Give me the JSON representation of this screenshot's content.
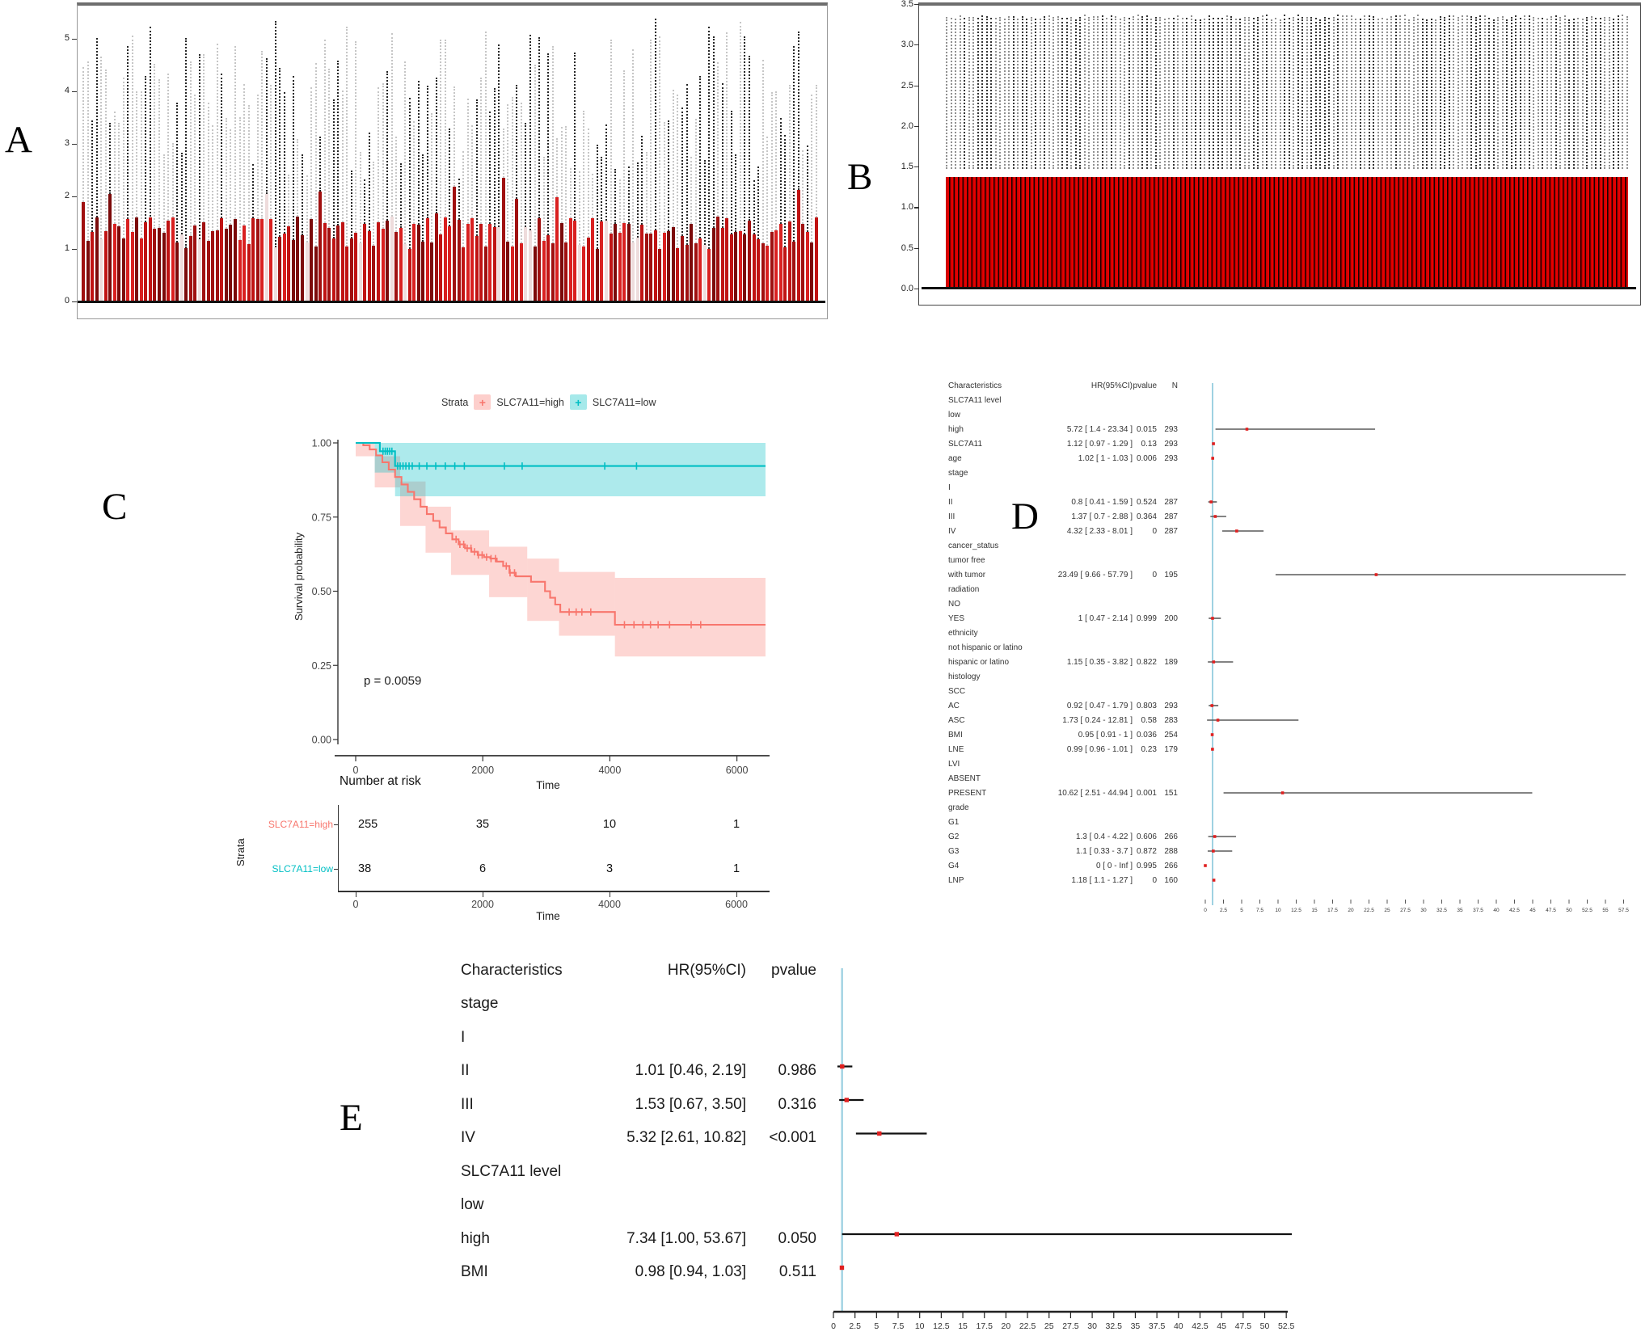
{
  "figure": {
    "panel_labels": {
      "a": "A",
      "b": "B",
      "c": "C",
      "d": "D",
      "e": "E"
    }
  },
  "colors": {
    "bar_red_dark": "#7c0a0a",
    "km_high": "#F8766D",
    "km_high_band": "rgba(248,118,109,0.30)",
    "km_low": "#00BFC4",
    "km_low_band": "rgba(0,191,196,0.32)",
    "forest_point": "#e02020",
    "forest_ci_line_d": "#5a5a5a",
    "forest_ci_line_e": "#111111",
    "reference_line_blue": "#9fd2e2"
  },
  "chart_data": [
    {
      "id": "A",
      "type": "bar",
      "title": "",
      "ylim": [
        0,
        5
      ],
      "yticks": [
        0,
        1,
        2,
        3,
        4,
        5
      ],
      "n_samples": 165,
      "red_bar_value_range": [
        1.0,
        2.2
      ],
      "dotted_top_value_range": [
        2.3,
        5.4
      ],
      "seed": 7,
      "bar_palette": [
        "#7c0a0a",
        "#a01010",
        "#c01313",
        "#d92020"
      ],
      "light_bar_color": "#eedcdc",
      "dot_colors": [
        "#262626",
        "#c6c6c6"
      ],
      "note": "Per-sample solid red bars with black/grey dotted whisker columns; individual bar heights are visual noise regenerated deterministically from seed"
    },
    {
      "id": "B",
      "type": "bar",
      "title": "",
      "ylim": [
        0,
        3.5
      ],
      "yticks": [
        3.5,
        3.0,
        2.5,
        2.0,
        1.5,
        1.0,
        0.5,
        0.0
      ],
      "n_samples": 154,
      "uniform_red_bar_value": 1.37,
      "dotted_band_value_range": [
        1.47,
        3.37
      ],
      "seed": 11,
      "red_color": "#e60000",
      "separator_color": "#1a0000",
      "dot_colors": [
        "#333333",
        "#909090"
      ],
      "note": "Uniform red bars at ~1.37 for every sample with dotted columns spanning ~1.47-3.37"
    },
    {
      "id": "C",
      "type": "line",
      "title": "",
      "xlabel": "Time",
      "ylabel": "Survival probability",
      "xticks": [
        0,
        2000,
        4000,
        6000
      ],
      "yticks": [
        0.0,
        0.25,
        0.5,
        0.75,
        1.0
      ],
      "xlim": [
        0,
        6450
      ],
      "ylim": [
        0,
        1
      ],
      "p_value_text": "p = 0.0059",
      "legend_title": "Strata",
      "series": [
        {
          "name": "SLC7A11=high",
          "color": "#F8766D",
          "band_color": "rgba(248,118,109,0.30)",
          "steps": [
            [
              0,
              1.0
            ],
            [
              120,
              0.992
            ],
            [
              220,
              0.978
            ],
            [
              320,
              0.958
            ],
            [
              420,
              0.935
            ],
            [
              520,
              0.91
            ],
            [
              620,
              0.885
            ],
            [
              720,
              0.86
            ],
            [
              820,
              0.835
            ],
            [
              920,
              0.81
            ],
            [
              1020,
              0.785
            ],
            [
              1120,
              0.76
            ],
            [
              1220,
              0.737
            ],
            [
              1320,
              0.715
            ],
            [
              1420,
              0.695
            ],
            [
              1520,
              0.675
            ],
            [
              1620,
              0.658
            ],
            [
              1720,
              0.645
            ],
            [
              1820,
              0.633
            ],
            [
              1920,
              0.622
            ],
            [
              2020,
              0.615
            ],
            [
              2120,
              0.61
            ],
            [
              2220,
              0.6
            ],
            [
              2320,
              0.585
            ],
            [
              2420,
              0.562
            ],
            [
              2520,
              0.55
            ],
            [
              2760,
              0.532
            ],
            [
              2980,
              0.5
            ],
            [
              3060,
              0.478
            ],
            [
              3140,
              0.455
            ],
            [
              3220,
              0.43
            ],
            [
              4080,
              0.387
            ],
            [
              6450,
              0.387
            ]
          ],
          "censors": [
            1580,
            1640,
            1700,
            1755,
            1815,
            1870,
            1930,
            1990,
            2060,
            2130,
            2200,
            2370,
            2430,
            2500,
            3360,
            3470,
            3560,
            3700,
            4230,
            4380,
            4520,
            4640,
            4760,
            4940,
            5280,
            5430
          ],
          "band_rects": [
            [
              0,
              300,
              0.955,
              1.0
            ],
            [
              300,
              700,
              0.85,
              0.955
            ],
            [
              700,
              1100,
              0.72,
              0.87
            ],
            [
              1100,
              1500,
              0.63,
              0.785
            ],
            [
              1500,
              2100,
              0.555,
              0.705
            ],
            [
              2100,
              2700,
              0.48,
              0.65
            ],
            [
              2700,
              3200,
              0.4,
              0.61
            ],
            [
              3200,
              4080,
              0.35,
              0.565
            ],
            [
              4080,
              6450,
              0.28,
              0.545
            ]
          ]
        },
        {
          "name": "SLC7A11=low",
          "color": "#00BFC4",
          "band_color": "rgba(0,191,196,0.32)",
          "steps": [
            [
              0,
              1.0
            ],
            [
              380,
              0.972
            ],
            [
              620,
              0.922
            ],
            [
              6450,
              0.922
            ]
          ],
          "censors": [
            430,
            465,
            500,
            535,
            570,
            660,
            700,
            745,
            790,
            840,
            890,
            1000,
            1120,
            1260,
            1410,
            1560,
            1710,
            2340,
            2620,
            3920,
            4420
          ],
          "band_rects": [
            [
              300,
              620,
              0.9,
              1.0
            ],
            [
              620,
              6450,
              0.82,
              1.0
            ]
          ]
        }
      ],
      "risk_table": {
        "title": "Number at risk",
        "ylabel": "Strata",
        "xlabel": "Time",
        "xticks": [
          0,
          2000,
          4000,
          6000
        ],
        "rows": [
          {
            "label": "SLC7A11=high",
            "color": "#F8766D",
            "values": [
              "255",
              "35",
              "10",
              "1"
            ]
          },
          {
            "label": "SLC7A11=low",
            "color": "#00BFC4",
            "values": [
              "38",
              "6",
              "3",
              "1"
            ]
          }
        ]
      }
    },
    {
      "id": "D",
      "type": "forest",
      "columns": [
        "Characteristics",
        "HR(95%CI)",
        "pvalue",
        "N"
      ],
      "axis": {
        "min": 0,
        "max": 57.5,
        "step": 2.5,
        "reference": 1
      },
      "rows": [
        {
          "label": "SLC7A11 level"
        },
        {
          "label": "low"
        },
        {
          "label": "high",
          "hr_text": "5.72 [ 1.4 - 23.34 ]",
          "p": "0.015",
          "n": "293",
          "hr": 5.72,
          "lo": 1.4,
          "hi": 23.34
        },
        {
          "label": "SLC7A11",
          "hr_text": "1.12 [ 0.97 - 1.29 ]",
          "p": "0.13",
          "n": "293",
          "hr": 1.12,
          "lo": 0.97,
          "hi": 1.29
        },
        {
          "label": "age",
          "hr_text": "1.02 [ 1 - 1.03 ]",
          "p": "0.006",
          "n": "293",
          "hr": 1.02,
          "lo": 1,
          "hi": 1.03
        },
        {
          "label": "stage"
        },
        {
          "label": "I"
        },
        {
          "label": "II",
          "hr_text": "0.8 [ 0.41 - 1.59 ]",
          "p": "0.524",
          "n": "287",
          "hr": 0.8,
          "lo": 0.41,
          "hi": 1.59
        },
        {
          "label": "III",
          "hr_text": "1.37 [ 0.7 - 2.88 ]",
          "p": "0.364",
          "n": "287",
          "hr": 1.37,
          "lo": 0.7,
          "hi": 2.88
        },
        {
          "label": "IV",
          "hr_text": "4.32 [ 2.33 - 8.01 ]",
          "p": "0",
          "n": "287",
          "hr": 4.32,
          "lo": 2.33,
          "hi": 8.01
        },
        {
          "label": "cancer_status"
        },
        {
          "label": "tumor free"
        },
        {
          "label": "with tumor",
          "hr_text": "23.49 [ 9.66 - 57.79 ]",
          "p": "0",
          "n": "195",
          "hr": 23.49,
          "lo": 9.66,
          "hi": 57.79
        },
        {
          "label": "radiation"
        },
        {
          "label": "NO"
        },
        {
          "label": "YES",
          "hr_text": "1 [ 0.47 - 2.14 ]",
          "p": "0.999",
          "n": "200",
          "hr": 1,
          "lo": 0.47,
          "hi": 2.14
        },
        {
          "label": "ethnicity"
        },
        {
          "label": "not hispanic or latino"
        },
        {
          "label": "hispanic or latino",
          "hr_text": "1.15 [ 0.35 - 3.82 ]",
          "p": "0.822",
          "n": "189",
          "hr": 1.15,
          "lo": 0.35,
          "hi": 3.82
        },
        {
          "label": "histology"
        },
        {
          "label": "SCC"
        },
        {
          "label": "AC",
          "hr_text": "0.92 [ 0.47 - 1.79 ]",
          "p": "0.803",
          "n": "293",
          "hr": 0.92,
          "lo": 0.47,
          "hi": 1.79
        },
        {
          "label": "ASC",
          "hr_text": "1.73 [ 0.24 - 12.81 ]",
          "p": "0.58",
          "n": "283",
          "hr": 1.73,
          "lo": 0.24,
          "hi": 12.81
        },
        {
          "label": "BMI",
          "hr_text": "0.95 [ 0.91 - 1 ]",
          "p": "0.036",
          "n": "254",
          "hr": 0.95,
          "lo": 0.91,
          "hi": 1
        },
        {
          "label": "LNE",
          "hr_text": "0.99 [ 0.96 - 1.01 ]",
          "p": "0.23",
          "n": "179",
          "hr": 0.99,
          "lo": 0.96,
          "hi": 1.01
        },
        {
          "label": "LVI"
        },
        {
          "label": "ABSENT"
        },
        {
          "label": "PRESENT",
          "hr_text": "10.62 [ 2.51 - 44.94 ]",
          "p": "0.001",
          "n": "151",
          "hr": 10.62,
          "lo": 2.51,
          "hi": 44.94
        },
        {
          "label": "grade"
        },
        {
          "label": "G1"
        },
        {
          "label": "G2",
          "hr_text": "1.3 [ 0.4 - 4.22 ]",
          "p": "0.606",
          "n": "266",
          "hr": 1.3,
          "lo": 0.4,
          "hi": 4.22
        },
        {
          "label": "G3",
          "hr_text": "1.1 [ 0.33 - 3.7 ]",
          "p": "0.872",
          "n": "288",
          "hr": 1.1,
          "lo": 0.33,
          "hi": 3.7
        },
        {
          "label": "G4",
          "hr_text": "0 [ 0 - Inf ]",
          "p": "0.995",
          "n": "266",
          "hr": 0,
          "lo": 0,
          "hi": null
        },
        {
          "label": "LNP",
          "hr_text": "1.18 [ 1.1 - 1.27 ]",
          "p": "0",
          "n": "160",
          "hr": 1.18,
          "lo": 1.1,
          "hi": 1.27
        }
      ]
    },
    {
      "id": "E",
      "type": "forest",
      "columns": [
        "Characteristics",
        "HR(95%CI)",
        "pvalue"
      ],
      "axis": {
        "min": 0,
        "max": 52.5,
        "step": 2.5,
        "reference": 1
      },
      "rows": [
        {
          "label": "stage"
        },
        {
          "label": "I"
        },
        {
          "label": "II",
          "hr_text": "1.01 [0.46, 2.19]",
          "p": "0.986",
          "hr": 1.01,
          "lo": 0.46,
          "hi": 2.19
        },
        {
          "label": "III",
          "hr_text": "1.53 [0.67, 3.50]",
          "p": "0.316",
          "hr": 1.53,
          "lo": 0.67,
          "hi": 3.5
        },
        {
          "label": "IV",
          "hr_text": "5.32 [2.61, 10.82]",
          "p": "<0.001",
          "hr": 5.32,
          "lo": 2.61,
          "hi": 10.82
        },
        {
          "label": "SLC7A11 level"
        },
        {
          "label": "low"
        },
        {
          "label": "high",
          "hr_text": "7.34 [1.00, 53.67]",
          "p": "0.050",
          "hr": 7.34,
          "lo": 1.0,
          "hi": 53.67
        },
        {
          "label": "BMI",
          "hr_text": "0.98 [0.94, 1.03]",
          "p": "0.511",
          "hr": 0.98,
          "lo": 0.94,
          "hi": 1.03
        }
      ]
    }
  ]
}
